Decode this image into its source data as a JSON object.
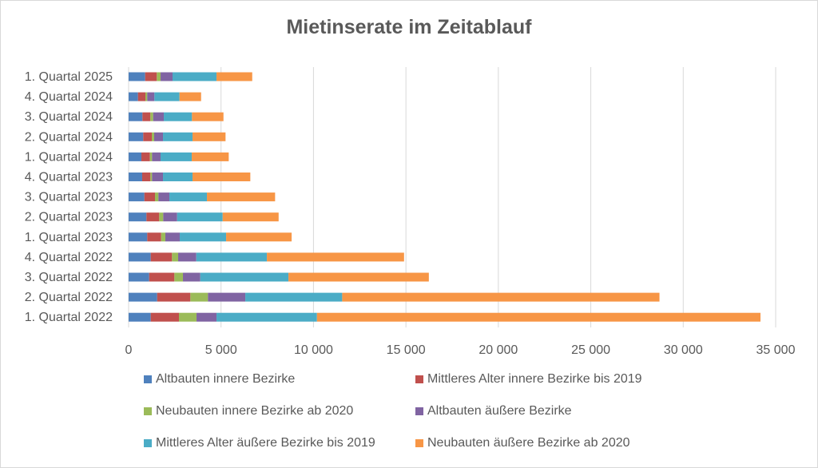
{
  "chart_data": {
    "type": "bar",
    "orientation": "horizontal",
    "stacked": true,
    "title": "Mietinserate im Zeitablauf",
    "xlabel": "",
    "ylabel": "",
    "xlim": [
      0,
      35000
    ],
    "x_ticks": [
      0,
      5000,
      10000,
      15000,
      20000,
      25000,
      30000,
      35000
    ],
    "x_tick_labels": [
      "0",
      "5 000",
      "10 000",
      "15 000",
      "20 000",
      "25 000",
      "30 000",
      "35 000"
    ],
    "grid": true,
    "legend_position": "bottom",
    "categories": [
      "1. Quartal 2025",
      "4. Quartal 2024",
      "3. Quartal 2024",
      "2. Quartal 2024",
      "1. Quartal 2024",
      "4. Quartal 2023",
      "3. Quartal 2023",
      "2. Quartal 2023",
      "1. Quartal 2023",
      "4. Quartal 2022",
      "3. Quartal 2022",
      "2. Quartal 2022",
      "1. Quartal 2022"
    ],
    "series": [
      {
        "name": "Altbauten innere Bezirke",
        "color": "#4F81BD",
        "values": [
          895,
          506,
          748,
          791,
          692,
          735,
          852,
          964,
          1007,
          1197,
          1111,
          1543,
          1197
        ]
      },
      {
        "name": "Mittleres Alter innere Bezirke bis 2019",
        "color": "#C0504D",
        "values": [
          631,
          402,
          432,
          463,
          462,
          445,
          574,
          692,
          752,
          1150,
          1366,
          1798,
          1526
        ]
      },
      {
        "name": "Neubauten innere Bezirke ab 2020",
        "color": "#9BBB59",
        "values": [
          204,
          99,
          147,
          129,
          113,
          87,
          186,
          216,
          229,
          333,
          462,
          951,
          951
        ]
      },
      {
        "name": "Altbauten äußere Bezirke",
        "color": "#8064A2",
        "values": [
          647,
          389,
          575,
          476,
          462,
          592,
          593,
          752,
          778,
          981,
          938,
          2019,
          1081
        ]
      },
      {
        "name": "Mittleres Alter äußere Bezirke bis 2019",
        "color": "#4BACC6",
        "values": [
          2378,
          1357,
          1526,
          1599,
          1686,
          1599,
          2031,
          2464,
          2508,
          3817,
          4768,
          5243,
          5433
        ]
      },
      {
        "name": "Neubauten äußere Bezirke ab 2020",
        "color": "#F79646",
        "values": [
          1932,
          1168,
          1703,
          1785,
          2001,
          3125,
          3687,
          3026,
          3544,
          7422,
          7595,
          17161,
          23991
        ]
      }
    ]
  }
}
